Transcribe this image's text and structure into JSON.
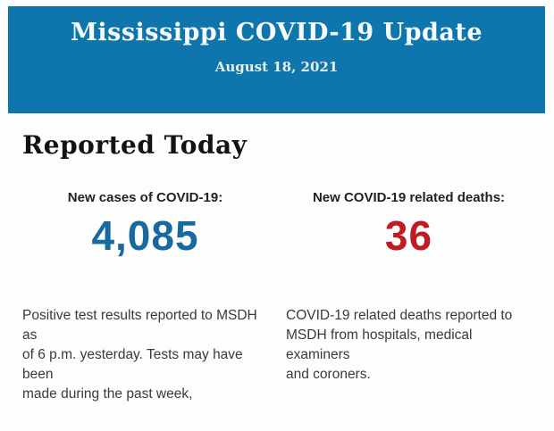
{
  "banner": {
    "title": "Mississippi COVID-19 Update",
    "date": "August 18, 2021",
    "background_color": "#0e76ad",
    "text_color": "#f6fafa"
  },
  "main": {
    "section_title": "Reported Today",
    "cases": {
      "label": "New cases of COVID-19:",
      "value": "4,085",
      "value_color": "#17699e",
      "description": "Positive test results reported to MSDH as\nof 6 p.m. yesterday. Tests may have been\nmade during the past week,"
    },
    "deaths": {
      "label": "New COVID-19 related deaths:",
      "value": "36",
      "value_color": "#c01b23",
      "description": "COVID-19 related deaths reported to\nMSDH from hospitals, medical examiners\nand coroners."
    }
  }
}
